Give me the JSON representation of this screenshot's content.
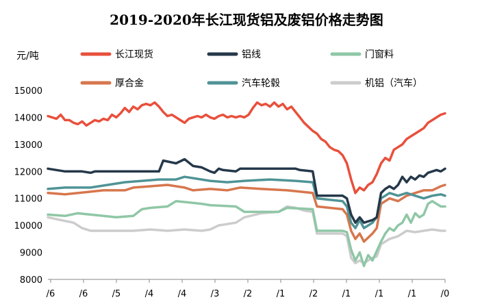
{
  "chart_data": {
    "type": "line",
    "title": "2019-2020年长江现货铝及废铝价格走势图",
    "unit": "元/吨",
    "xlabel": "",
    "ylabel": "",
    "ylim": [
      8000,
      15000
    ],
    "y_ticks": [
      "15000",
      "14000",
      "13000",
      "12000",
      "11000",
      "10000",
      "9000",
      "8000"
    ],
    "x_tick_labels": [
      "/6",
      "/6",
      "/5",
      "/4",
      "/4",
      "/3",
      "/2",
      "/1",
      "/2",
      "/1",
      "/1",
      "/1",
      "/0"
    ],
    "grid": false,
    "legend_position": "top",
    "series": [
      {
        "name": "长江现货",
        "color": "#e8503c",
        "values": [
          [
            0,
            14050
          ],
          [
            1,
            14000
          ],
          [
            2,
            13950
          ],
          [
            3,
            14100
          ],
          [
            4,
            13900
          ],
          [
            5,
            13900
          ],
          [
            6,
            13800
          ],
          [
            7,
            13750
          ],
          [
            8,
            13850
          ],
          [
            9,
            13700
          ],
          [
            10,
            13800
          ],
          [
            11,
            13900
          ],
          [
            12,
            13850
          ],
          [
            13,
            13950
          ],
          [
            14,
            13900
          ],
          [
            15,
            14100
          ],
          [
            16,
            14000
          ],
          [
            17,
            14150
          ],
          [
            18,
            14350
          ],
          [
            19,
            14200
          ],
          [
            20,
            14400
          ],
          [
            21,
            14300
          ],
          [
            22,
            14450
          ],
          [
            23,
            14500
          ],
          [
            24,
            14450
          ],
          [
            25,
            14550
          ],
          [
            26,
            14400
          ],
          [
            27,
            14200
          ],
          [
            28,
            14050
          ],
          [
            29,
            14100
          ],
          [
            30,
            14000
          ],
          [
            31,
            13900
          ],
          [
            32,
            13800
          ],
          [
            33,
            13950
          ],
          [
            34,
            14000
          ],
          [
            35,
            14050
          ],
          [
            36,
            14000
          ],
          [
            37,
            14100
          ],
          [
            38,
            14000
          ],
          [
            39,
            13950
          ],
          [
            40,
            14050
          ],
          [
            41,
            14100
          ],
          [
            42,
            14000
          ],
          [
            43,
            14050
          ],
          [
            44,
            14000
          ],
          [
            45,
            14050
          ],
          [
            46,
            14000
          ],
          [
            47,
            14100
          ],
          [
            48,
            14350
          ],
          [
            49,
            14550
          ],
          [
            50,
            14450
          ],
          [
            51,
            14500
          ],
          [
            52,
            14400
          ],
          [
            53,
            14550
          ],
          [
            54,
            14400
          ],
          [
            55,
            14500
          ],
          [
            56,
            14300
          ],
          [
            57,
            14400
          ],
          [
            58,
            14200
          ],
          [
            59,
            14000
          ],
          [
            60,
            13800
          ],
          [
            61,
            13650
          ],
          [
            62,
            13500
          ],
          [
            63,
            13400
          ],
          [
            64,
            13200
          ],
          [
            65,
            13100
          ],
          [
            66,
            12900
          ],
          [
            67,
            12800
          ],
          [
            68,
            12750
          ],
          [
            69,
            12600
          ],
          [
            70,
            12300
          ],
          [
            71,
            11700
          ],
          [
            72,
            11200
          ],
          [
            73,
            11400
          ],
          [
            74,
            11300
          ],
          [
            75,
            11500
          ],
          [
            76,
            11600
          ],
          [
            77,
            11900
          ],
          [
            78,
            12300
          ],
          [
            79,
            12500
          ],
          [
            80,
            12400
          ],
          [
            81,
            12800
          ],
          [
            82,
            12900
          ],
          [
            83,
            13000
          ],
          [
            84,
            13200
          ],
          [
            85,
            13300
          ],
          [
            86,
            13400
          ],
          [
            87,
            13500
          ],
          [
            88,
            13600
          ],
          [
            89,
            13800
          ],
          [
            90,
            13900
          ],
          [
            91,
            14000
          ],
          [
            92,
            14100
          ],
          [
            93,
            14150
          ]
        ]
      },
      {
        "name": "铝线",
        "color": "#25384a",
        "values": [
          [
            0,
            12100
          ],
          [
            4,
            12000
          ],
          [
            8,
            12000
          ],
          [
            10,
            11950
          ],
          [
            11,
            12000
          ],
          [
            26,
            12000
          ],
          [
            27,
            12400
          ],
          [
            30,
            12300
          ],
          [
            32,
            12450
          ],
          [
            34,
            12200
          ],
          [
            36,
            12150
          ],
          [
            38,
            12000
          ],
          [
            39,
            11950
          ],
          [
            40,
            12100
          ],
          [
            41,
            12050
          ],
          [
            44,
            12000
          ],
          [
            45,
            12100
          ],
          [
            58,
            12100
          ],
          [
            59,
            12050
          ],
          [
            62,
            12000
          ],
          [
            63,
            11100
          ],
          [
            69,
            11100
          ],
          [
            70,
            11000
          ],
          [
            71,
            10400
          ],
          [
            72,
            10100
          ],
          [
            73,
            10300
          ],
          [
            74,
            10100
          ],
          [
            76,
            10200
          ],
          [
            77,
            10300
          ],
          [
            78,
            11200
          ],
          [
            79,
            11350
          ],
          [
            80,
            11450
          ],
          [
            81,
            11350
          ],
          [
            82,
            11500
          ],
          [
            83,
            11800
          ],
          [
            84,
            11600
          ],
          [
            85,
            11800
          ],
          [
            86,
            11700
          ],
          [
            87,
            11850
          ],
          [
            88,
            11800
          ],
          [
            89,
            11950
          ],
          [
            90,
            12000
          ],
          [
            91,
            12050
          ],
          [
            92,
            12000
          ],
          [
            93,
            12100
          ]
        ]
      },
      {
        "name": "门窗料",
        "color": "#8fc7a6",
        "values": [
          [
            0,
            10400
          ],
          [
            4,
            10350
          ],
          [
            7,
            10450
          ],
          [
            10,
            10400
          ],
          [
            13,
            10350
          ],
          [
            16,
            10300
          ],
          [
            20,
            10350
          ],
          [
            22,
            10600
          ],
          [
            24,
            10650
          ],
          [
            28,
            10700
          ],
          [
            30,
            10900
          ],
          [
            33,
            10850
          ],
          [
            36,
            10800
          ],
          [
            38,
            10750
          ],
          [
            44,
            10700
          ],
          [
            46,
            10500
          ],
          [
            54,
            10500
          ],
          [
            56,
            10650
          ],
          [
            62,
            10600
          ],
          [
            63,
            9800
          ],
          [
            69,
            9800
          ],
          [
            70,
            9750
          ],
          [
            71,
            9100
          ],
          [
            72,
            8700
          ],
          [
            73,
            9000
          ],
          [
            74,
            8500
          ],
          [
            75,
            8900
          ],
          [
            76,
            8700
          ],
          [
            78,
            9400
          ],
          [
            79,
            9700
          ],
          [
            80,
            9900
          ],
          [
            81,
            9800
          ],
          [
            82,
            10000
          ],
          [
            83,
            10100
          ],
          [
            84,
            10400
          ],
          [
            85,
            10100
          ],
          [
            86,
            10450
          ],
          [
            87,
            10300
          ],
          [
            88,
            10400
          ],
          [
            89,
            10800
          ],
          [
            90,
            10900
          ],
          [
            92,
            10700
          ],
          [
            93,
            10700
          ]
        ]
      },
      {
        "name": "厚合金",
        "color": "#d7764d",
        "values": [
          [
            0,
            11200
          ],
          [
            4,
            11150
          ],
          [
            10,
            11250
          ],
          [
            13,
            11300
          ],
          [
            18,
            11300
          ],
          [
            20,
            11400
          ],
          [
            24,
            11450
          ],
          [
            28,
            11500
          ],
          [
            32,
            11400
          ],
          [
            34,
            11300
          ],
          [
            38,
            11350
          ],
          [
            42,
            11300
          ],
          [
            45,
            11400
          ],
          [
            50,
            11350
          ],
          [
            56,
            11300
          ],
          [
            62,
            11200
          ],
          [
            63,
            10700
          ],
          [
            69,
            10600
          ],
          [
            70,
            10400
          ],
          [
            71,
            9800
          ],
          [
            72,
            9500
          ],
          [
            73,
            9700
          ],
          [
            74,
            9400
          ],
          [
            76,
            9700
          ],
          [
            77,
            9900
          ],
          [
            78,
            10800
          ],
          [
            80,
            11000
          ],
          [
            82,
            10900
          ],
          [
            84,
            11100
          ],
          [
            86,
            11200
          ],
          [
            88,
            11300
          ],
          [
            90,
            11300
          ],
          [
            92,
            11450
          ],
          [
            93,
            11500
          ]
        ]
      },
      {
        "name": "汽车轮毂",
        "color": "#4f9396",
        "values": [
          [
            0,
            11350
          ],
          [
            4,
            11400
          ],
          [
            10,
            11400
          ],
          [
            14,
            11500
          ],
          [
            18,
            11600
          ],
          [
            22,
            11650
          ],
          [
            26,
            11700
          ],
          [
            30,
            11700
          ],
          [
            32,
            11800
          ],
          [
            36,
            11700
          ],
          [
            38,
            11650
          ],
          [
            42,
            11600
          ],
          [
            46,
            11650
          ],
          [
            52,
            11700
          ],
          [
            58,
            11650
          ],
          [
            62,
            11600
          ],
          [
            63,
            11000
          ],
          [
            69,
            10900
          ],
          [
            70,
            10700
          ],
          [
            71,
            10100
          ],
          [
            72,
            9900
          ],
          [
            73,
            10200
          ],
          [
            74,
            9900
          ],
          [
            76,
            10100
          ],
          [
            77,
            10300
          ],
          [
            78,
            11000
          ],
          [
            80,
            11200
          ],
          [
            82,
            11100
          ],
          [
            84,
            11200
          ],
          [
            86,
            11100
          ],
          [
            88,
            11000
          ],
          [
            90,
            11100
          ],
          [
            92,
            11150
          ],
          [
            93,
            11100
          ]
        ]
      },
      {
        "name": "机铝（汽车）",
        "color": "#cccccc",
        "values": [
          [
            0,
            10300
          ],
          [
            3,
            10200
          ],
          [
            6,
            10100
          ],
          [
            8,
            9900
          ],
          [
            10,
            9800
          ],
          [
            14,
            9800
          ],
          [
            20,
            9800
          ],
          [
            24,
            9850
          ],
          [
            28,
            9800
          ],
          [
            32,
            9850
          ],
          [
            36,
            9800
          ],
          [
            38,
            9850
          ],
          [
            40,
            10000
          ],
          [
            44,
            10100
          ],
          [
            46,
            10300
          ],
          [
            50,
            10450
          ],
          [
            54,
            10500
          ],
          [
            56,
            10700
          ],
          [
            58,
            10650
          ],
          [
            60,
            10550
          ],
          [
            62,
            10500
          ],
          [
            63,
            9700
          ],
          [
            69,
            9700
          ],
          [
            70,
            9600
          ],
          [
            71,
            8800
          ],
          [
            72,
            8600
          ],
          [
            73,
            8700
          ],
          [
            74,
            8600
          ],
          [
            76,
            8800
          ],
          [
            77,
            8850
          ],
          [
            78,
            9300
          ],
          [
            80,
            9500
          ],
          [
            82,
            9600
          ],
          [
            84,
            9800
          ],
          [
            86,
            9750
          ],
          [
            88,
            9800
          ],
          [
            90,
            9850
          ],
          [
            92,
            9800
          ],
          [
            93,
            9800
          ]
        ]
      }
    ]
  }
}
